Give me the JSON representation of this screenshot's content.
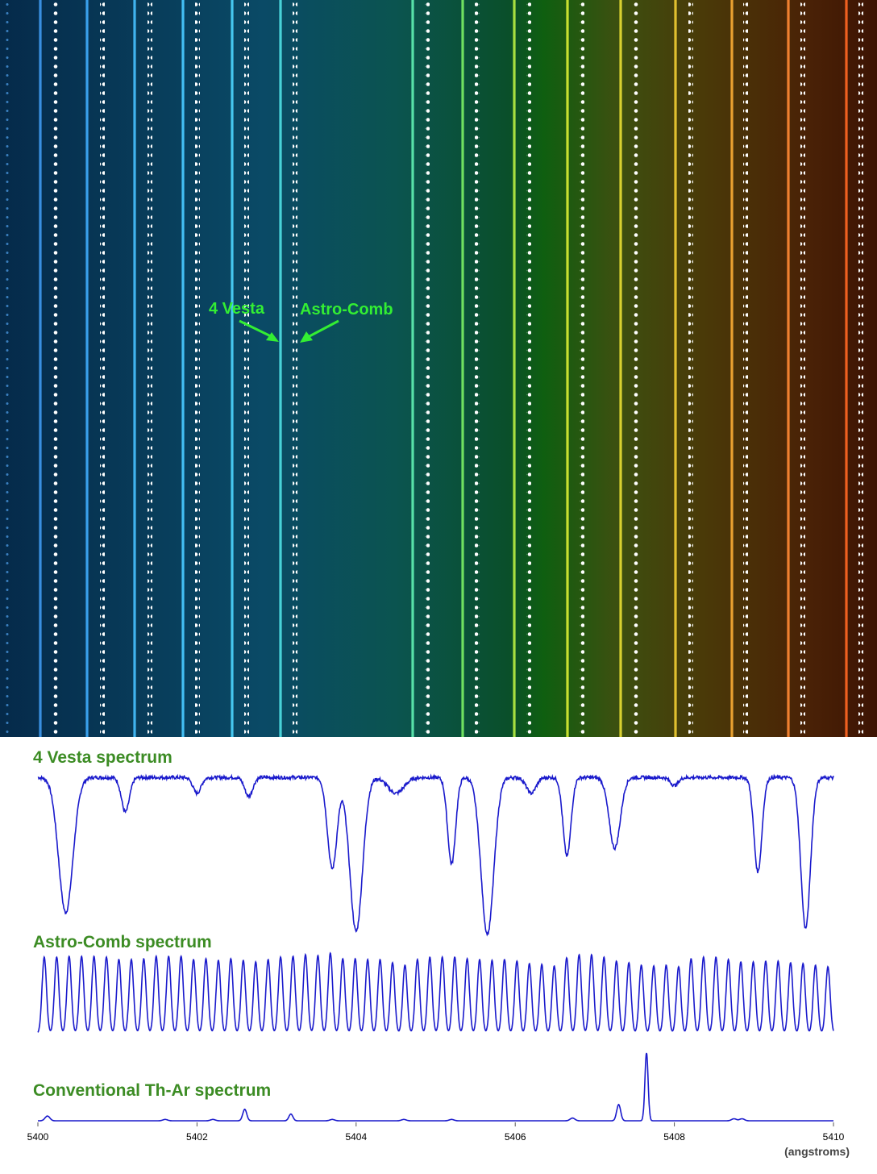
{
  "image_annotations": {
    "vesta_label": "4 Vesta",
    "comb_label": "Astro-Comb",
    "label_color": "#33ee33"
  },
  "chart_data": [
    {
      "type": "line",
      "title": "4 Vesta spectrum",
      "xlim": [
        5400,
        5410
      ],
      "ylim": [
        0,
        1
      ],
      "line_color": "#1a1acc",
      "baseline": 0.95,
      "absorption_lines": [
        {
          "x": 5400.35,
          "depth": 0.86,
          "width": 0.09
        },
        {
          "x": 5401.1,
          "depth": 0.22,
          "width": 0.05
        },
        {
          "x": 5402.0,
          "depth": 0.1,
          "width": 0.05
        },
        {
          "x": 5402.65,
          "depth": 0.12,
          "width": 0.05
        },
        {
          "x": 5403.7,
          "depth": 0.58,
          "width": 0.06
        },
        {
          "x": 5404.0,
          "depth": 0.98,
          "width": 0.08
        },
        {
          "x": 5404.5,
          "depth": 0.1,
          "width": 0.1
        },
        {
          "x": 5405.2,
          "depth": 0.55,
          "width": 0.05
        },
        {
          "x": 5405.65,
          "depth": 1.0,
          "width": 0.08
        },
        {
          "x": 5406.2,
          "depth": 0.1,
          "width": 0.06
        },
        {
          "x": 5406.65,
          "depth": 0.5,
          "width": 0.05
        },
        {
          "x": 5407.25,
          "depth": 0.45,
          "width": 0.07
        },
        {
          "x": 5408.0,
          "depth": 0.05,
          "width": 0.05
        },
        {
          "x": 5409.05,
          "depth": 0.6,
          "width": 0.05
        },
        {
          "x": 5409.65,
          "depth": 0.96,
          "width": 0.06
        }
      ]
    },
    {
      "type": "line",
      "title": "Astro-Comb spectrum",
      "xlim": [
        5400,
        5410
      ],
      "ylim": [
        0,
        1
      ],
      "line_color": "#1a1acc",
      "peak_count": 64,
      "peak_x_start": 5400.08,
      "peak_x_end": 5409.93,
      "peak_heights": [
        0.95,
        0.95,
        0.96,
        0.96,
        0.96,
        0.95,
        0.92,
        0.92,
        0.93,
        0.96,
        0.96,
        0.96,
        0.92,
        0.93,
        0.91,
        0.93,
        0.91,
        0.89,
        0.92,
        0.95,
        0.96,
        0.98,
        0.97,
        1.0,
        0.93,
        0.93,
        0.92,
        0.92,
        0.88,
        0.85,
        0.92,
        0.95,
        0.95,
        0.95,
        0.93,
        0.92,
        0.91,
        0.92,
        0.9,
        0.87,
        0.86,
        0.84,
        0.94,
        0.98,
        0.98,
        0.95,
        0.9,
        0.88,
        0.85,
        0.84,
        0.85,
        0.83,
        0.93,
        0.95,
        0.95,
        0.92,
        0.89,
        0.89,
        0.9,
        0.9,
        0.88,
        0.87,
        0.85,
        0.83
      ]
    },
    {
      "type": "line",
      "title": "Conventional Th-Ar spectrum",
      "xlim": [
        5400,
        5410
      ],
      "ylim": [
        0,
        1
      ],
      "line_color": "#1a1acc",
      "x_ticks": [
        "5400",
        "5402",
        "5404",
        "5406",
        "5408",
        "5410"
      ],
      "x_unit_label": "(angstroms)",
      "emission_lines": [
        {
          "x": 5400.12,
          "height": 0.07,
          "width": 0.03
        },
        {
          "x": 5401.6,
          "height": 0.02,
          "width": 0.03
        },
        {
          "x": 5402.2,
          "height": 0.02,
          "width": 0.03
        },
        {
          "x": 5402.6,
          "height": 0.17,
          "width": 0.025
        },
        {
          "x": 5403.18,
          "height": 0.1,
          "width": 0.025
        },
        {
          "x": 5403.7,
          "height": 0.02,
          "width": 0.03
        },
        {
          "x": 5404.6,
          "height": 0.02,
          "width": 0.03
        },
        {
          "x": 5405.2,
          "height": 0.02,
          "width": 0.03
        },
        {
          "x": 5406.72,
          "height": 0.04,
          "width": 0.03
        },
        {
          "x": 5407.3,
          "height": 0.24,
          "width": 0.025
        },
        {
          "x": 5407.65,
          "height": 1.0,
          "width": 0.02
        },
        {
          "x": 5408.75,
          "height": 0.03,
          "width": 0.03
        },
        {
          "x": 5408.85,
          "height": 0.03,
          "width": 0.03
        }
      ]
    }
  ]
}
